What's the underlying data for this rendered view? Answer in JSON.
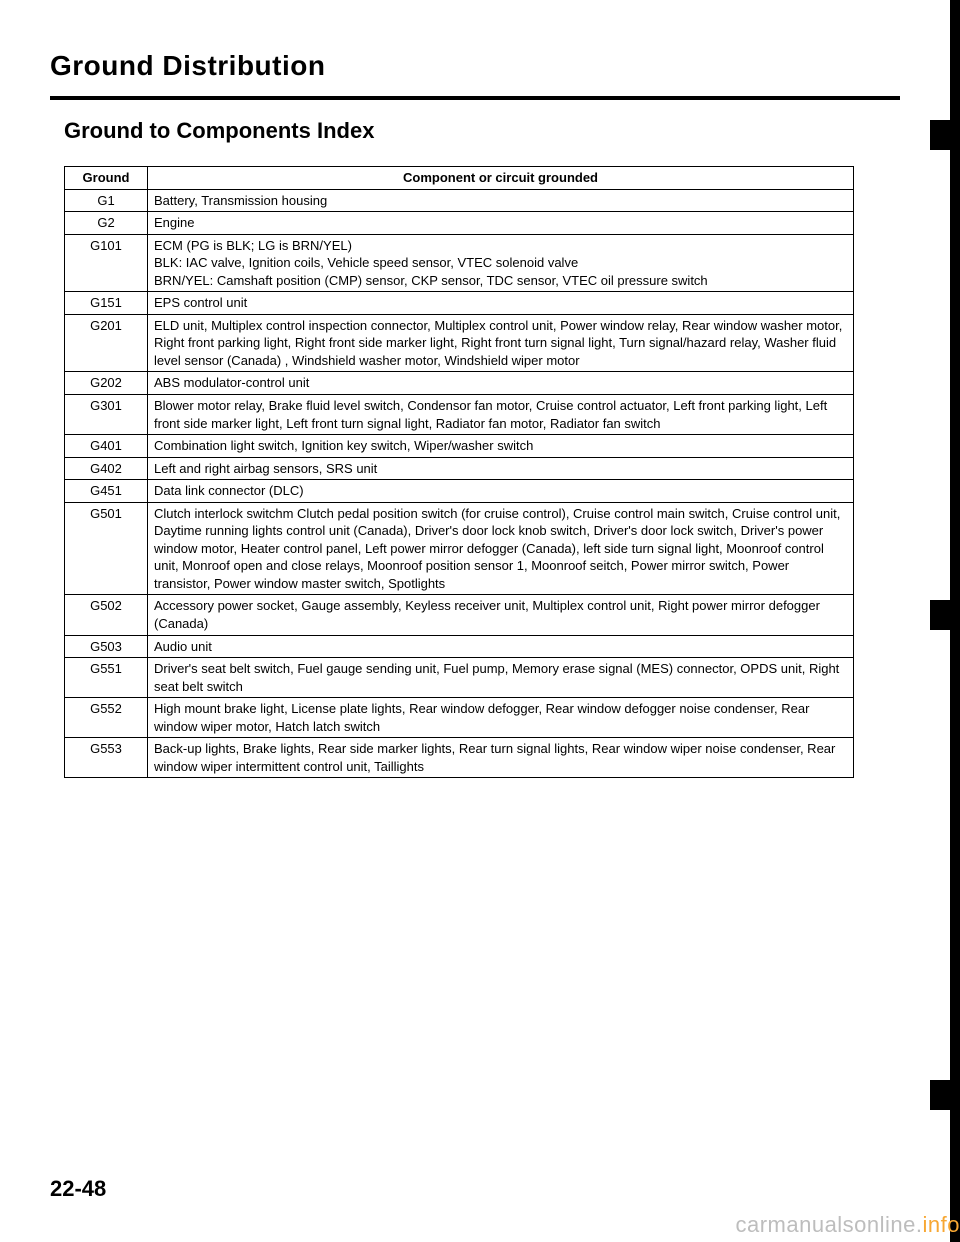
{
  "title": "Ground Distribution",
  "subtitle": "Ground to Components Index",
  "page_number": "22-48",
  "watermark": {
    "prefix": "carmanualsonline.",
    "suffix": "info"
  },
  "table": {
    "columns": [
      "Ground",
      "Component or circuit grounded"
    ],
    "rows": [
      [
        "G1",
        "Battery, Transmission housing"
      ],
      [
        "G2",
        "Engine"
      ],
      [
        "G101",
        "ECM (PG is BLK; LG is BRN/YEL)\nBLK: IAC valve, Ignition coils, Vehicle speed sensor, VTEC solenoid valve\nBRN/YEL: Camshaft position (CMP) sensor, CKP sensor, TDC sensor, VTEC oil pressure switch"
      ],
      [
        "G151",
        "EPS control unit"
      ],
      [
        "G201",
        "ELD unit, Multiplex control inspection connector, Multiplex control unit, Power window relay, Rear window washer motor, Right front parking light, Right front side marker light, Right front turn signal light, Turn signal/hazard relay, Washer fluid level sensor (Canada) , Windshield washer motor, Windshield wiper motor"
      ],
      [
        "G202",
        "ABS modulator-control unit"
      ],
      [
        "G301",
        "Blower motor relay, Brake fluid level switch, Condensor fan motor, Cruise control actuator, Left front parking light, Left front side marker light, Left front turn signal light, Radiator fan motor, Radiator fan switch"
      ],
      [
        "G401",
        "Combination light switch, Ignition key switch, Wiper/washer switch"
      ],
      [
        "G402",
        "Left and right airbag sensors, SRS unit"
      ],
      [
        "G451",
        "Data link connector (DLC)"
      ],
      [
        "G501",
        "Clutch interlock switchm Clutch pedal position switch (for cruise control), Cruise control main switch, Cruise control unit, Daytime running lights control unit (Canada), Driver's door lock knob switch, Driver's door lock switch, Driver's power window motor, Heater control panel, Left power mirror defogger (Canada), left side turn signal light, Moonroof control unit, Monroof open and close relays, Moonroof position sensor 1, Moonroof seitch, Power mirror switch, Power transistor, Power window master switch, Spotlights"
      ],
      [
        "G502",
        "Accessory power socket, Gauge assembly, Keyless receiver unit, Multiplex control unit, Right power mirror defogger (Canada)"
      ],
      [
        "G503",
        "Audio unit"
      ],
      [
        "G551",
        "Driver's seat belt switch, Fuel gauge sending unit, Fuel pump, Memory erase signal (MES) connector, OPDS unit, Right seat belt switch"
      ],
      [
        "G552",
        "High mount brake light, License plate lights, Rear window defogger, Rear window defogger noise condenser, Rear window wiper motor, Hatch latch switch"
      ],
      [
        "G553",
        "Back-up lights, Brake lights, Rear side marker lights, Rear turn signal lights, Rear window wiper noise condenser, Rear window wiper intermittent control unit, Taillights"
      ]
    ]
  },
  "edge_tabs": [
    120,
    600,
    1080
  ]
}
